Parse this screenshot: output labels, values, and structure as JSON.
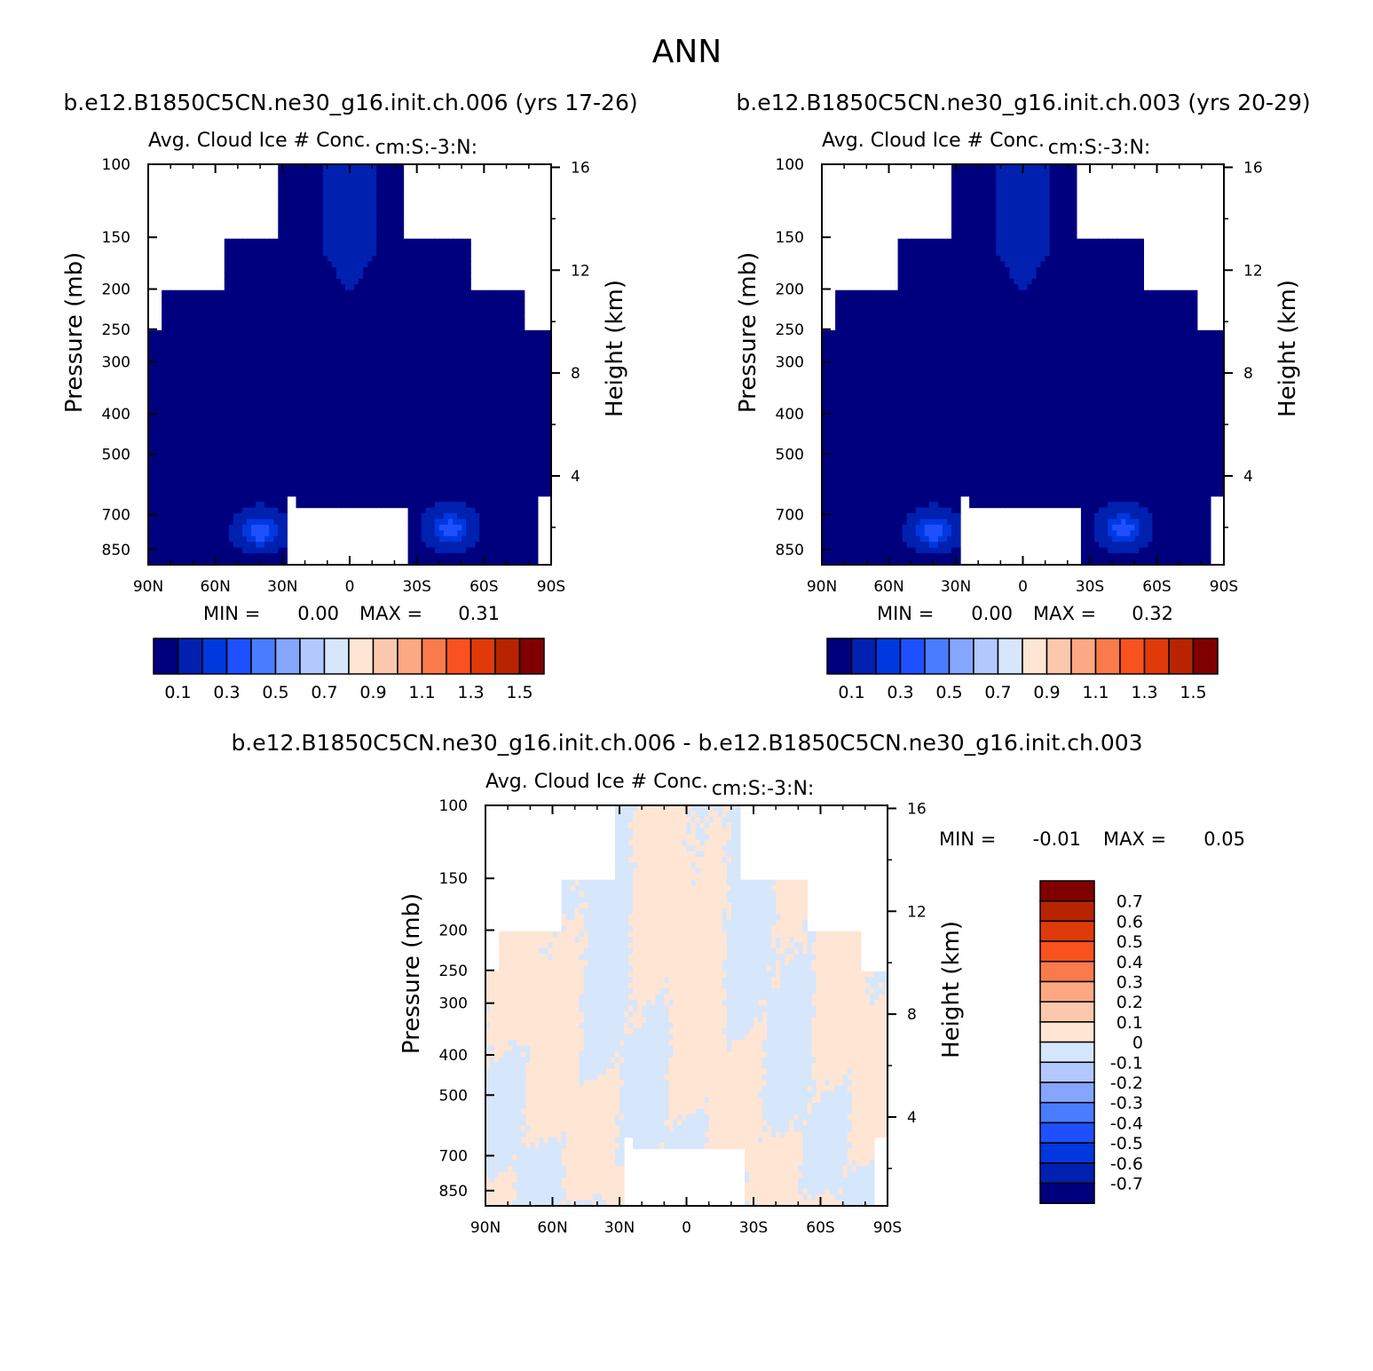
{
  "figure": {
    "season": "ANN",
    "diff_title": "b.e12.B1850C5CN.ne30_g16.init.ch.006 - b.e12.B1850C5CN.ne30_g16.init.ch.003"
  },
  "colors": {
    "abs_scale": [
      "#00007f",
      "#0020b0",
      "#0038e0",
      "#1f50ff",
      "#4a7cff",
      "#84a6ff",
      "#b3c8ff",
      "#d6e6fb",
      "#fee5d4",
      "#fcc8ad",
      "#fca882",
      "#fa7a4c",
      "#fa521e",
      "#e03a0b",
      "#b82400",
      "#800000"
    ],
    "diff_scale": [
      "#00007f",
      "#0020b0",
      "#0038e0",
      "#1f50ff",
      "#4a7cff",
      "#84a6ff",
      "#b3c8ff",
      "#d6e6fb",
      "#fee5d4",
      "#fcc8ad",
      "#fca882",
      "#fa7a4c",
      "#fa521e",
      "#e03a0b",
      "#b82400",
      "#800000"
    ]
  },
  "chart_data": [
    {
      "type": "heatmap",
      "id": "left",
      "title": "b.e12.B1850C5CN.ne30_g16.init.ch.006 (yrs 17-26)",
      "subtitle_left": "Avg. Cloud Ice # Conc.",
      "subtitle_right": "cm:S:-3:N:",
      "xlabel": "",
      "ylabel": "Pressure (mb)",
      "ylabel_right": "Height (km)",
      "x_ticks": [
        "90N",
        "60N",
        "30N",
        "0",
        "30S",
        "60S",
        "90S"
      ],
      "x_range": [
        90,
        -90
      ],
      "y_ticks": [
        100,
        150,
        200,
        250,
        300,
        400,
        500,
        700,
        850
      ],
      "y_range": [
        100,
        925
      ],
      "y_ticks_right": [
        16,
        12,
        8,
        4
      ],
      "stats": {
        "min_label": "MIN =",
        "min": "0.00",
        "max_label": "MAX =",
        "max": "0.31"
      },
      "colorbar": {
        "orientation": "horizontal",
        "labels": [
          "0.1",
          "0.3",
          "0.5",
          "0.7",
          "0.9",
          "1.1",
          "1.3",
          "1.5"
        ]
      },
      "peaks": [
        {
          "lat": -45,
          "p": 760,
          "level": 4
        },
        {
          "lat": 40,
          "p": 770,
          "level": 3
        }
      ]
    },
    {
      "type": "heatmap",
      "id": "right",
      "title": "b.e12.B1850C5CN.ne30_g16.init.ch.003 (yrs 20-29)",
      "subtitle_left": "Avg. Cloud Ice # Conc.",
      "subtitle_right": "cm:S:-3:N:",
      "xlabel": "",
      "ylabel": "Pressure (mb)",
      "ylabel_right": "Height (km)",
      "x_ticks": [
        "90N",
        "60N",
        "30N",
        "0",
        "30S",
        "60S",
        "90S"
      ],
      "x_range": [
        90,
        -90
      ],
      "y_ticks": [
        100,
        150,
        200,
        250,
        300,
        400,
        500,
        700,
        850
      ],
      "y_range": [
        100,
        925
      ],
      "y_ticks_right": [
        16,
        12,
        8,
        4
      ],
      "stats": {
        "min_label": "MIN =",
        "min": "0.00",
        "max_label": "MAX =",
        "max": "0.32"
      },
      "colorbar": {
        "orientation": "horizontal",
        "labels": [
          "0.1",
          "0.3",
          "0.5",
          "0.7",
          "0.9",
          "1.1",
          "1.3",
          "1.5"
        ]
      },
      "peaks": [
        {
          "lat": -45,
          "p": 760,
          "level": 4
        },
        {
          "lat": 40,
          "p": 770,
          "level": 3
        }
      ]
    },
    {
      "type": "heatmap",
      "id": "diff",
      "title": "",
      "subtitle_left": "Avg. Cloud Ice # Conc.",
      "subtitle_right": "cm:S:-3:N:",
      "xlabel": "",
      "ylabel": "Pressure (mb)",
      "ylabel_right": "Height (km)",
      "x_ticks": [
        "90N",
        "60N",
        "30N",
        "0",
        "30S",
        "60S",
        "90S"
      ],
      "x_range": [
        90,
        -90
      ],
      "y_ticks": [
        100,
        150,
        200,
        250,
        300,
        400,
        500,
        700,
        850
      ],
      "y_range": [
        100,
        925
      ],
      "y_ticks_right": [
        16,
        12,
        8,
        4
      ],
      "stats": {
        "min_label": "MIN =",
        "min": "-0.01",
        "max_label": "MAX =",
        "max": "0.05"
      },
      "colorbar": {
        "orientation": "vertical",
        "labels": [
          "0.7",
          "0.6",
          "0.5",
          "0.4",
          "0.3",
          "0.2",
          "0.1",
          "0",
          "-0.1",
          "-0.2",
          "-0.3",
          "-0.4",
          "-0.5",
          "-0.6",
          "-0.7"
        ]
      }
    }
  ]
}
